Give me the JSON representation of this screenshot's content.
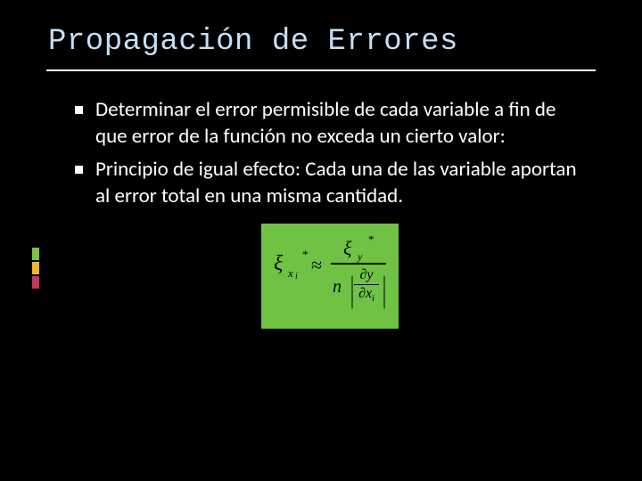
{
  "title": "Propagación de Errores",
  "accent_colors": [
    "#7cc04a",
    "#f2b430",
    "#c23a5a"
  ],
  "bullets": [
    "Determinar el error permisible de cada variable a fin de que error de la función no exceda un cierto valor:",
    "Principio de igual efecto: Cada una de las variable aportan al error total en una misma cantidad."
  ],
  "formula": {
    "background": "#6fc244",
    "lhs_symbol": "ξ",
    "lhs_sub": "x",
    "lhs_sub_i": "i",
    "lhs_star": "*",
    "approx": "≈",
    "num_symbol": "ξ",
    "num_sub": "y",
    "num_star": "*",
    "denom_n": "n",
    "partial": "∂",
    "partial_num": "∂y",
    "partial_den_base": "∂x",
    "partial_den_sub": "i"
  }
}
